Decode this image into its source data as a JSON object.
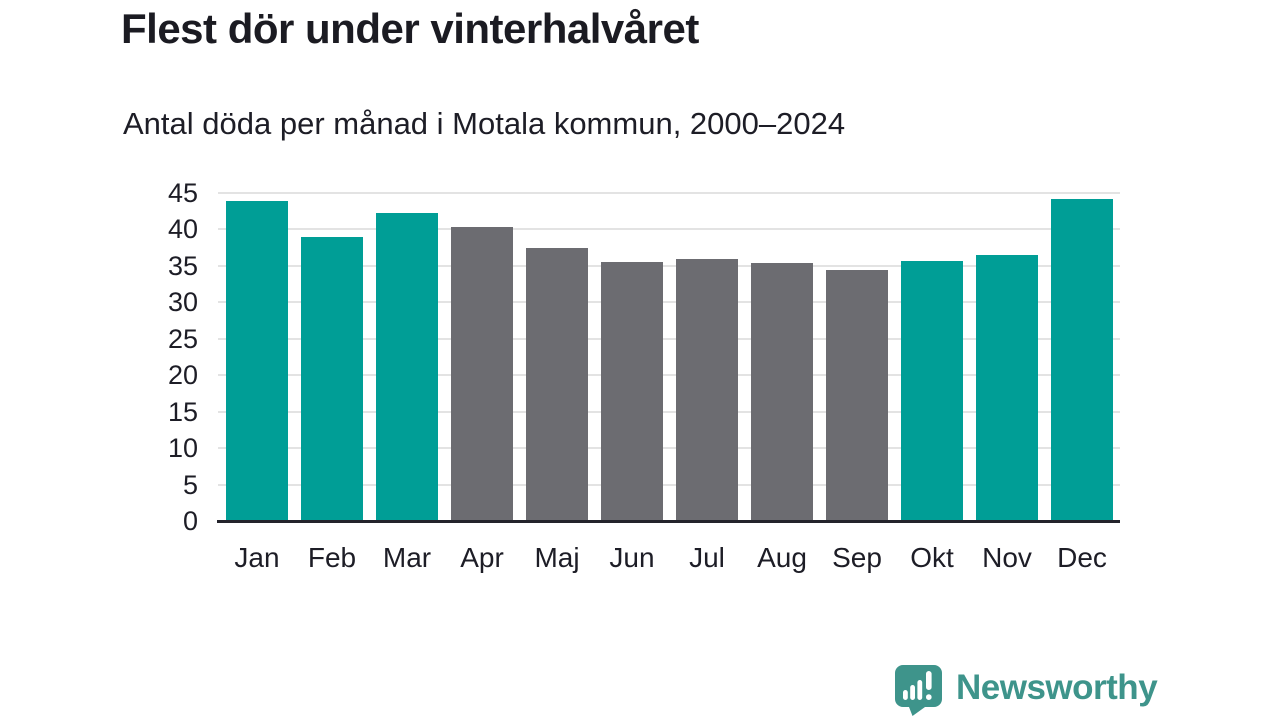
{
  "chart_data": {
    "type": "bar",
    "title": "Flest dör under vinterhalvåret",
    "subtitle": "Antal döda per månad i Motala kommun, 2000–2024",
    "categories": [
      "Jan",
      "Feb",
      "Mar",
      "Apr",
      "Maj",
      "Jun",
      "Jul",
      "Aug",
      "Sep",
      "Okt",
      "Nov",
      "Dec"
    ],
    "values": [
      43.9,
      38.9,
      42.2,
      40.4,
      37.5,
      35.5,
      36.0,
      35.4,
      34.5,
      35.7,
      36.5,
      44.2
    ],
    "bar_colors": [
      "#009e96",
      "#009e96",
      "#009e96",
      "#6c6c71",
      "#6c6c71",
      "#6c6c71",
      "#6c6c71",
      "#6c6c71",
      "#6c6c71",
      "#009e96",
      "#009e96",
      "#009e96"
    ],
    "accent_color": "#009e96",
    "neutral_color": "#6c6c71",
    "xlabel": "",
    "ylabel": "",
    "ylim": [
      0,
      45
    ],
    "yticks": [
      0,
      5,
      10,
      15,
      20,
      25,
      30,
      35,
      40,
      45
    ],
    "grid": "horizontal",
    "legend": "none"
  },
  "footer": {
    "brand": "Newsworthy",
    "brand_color": "#3e948b"
  }
}
